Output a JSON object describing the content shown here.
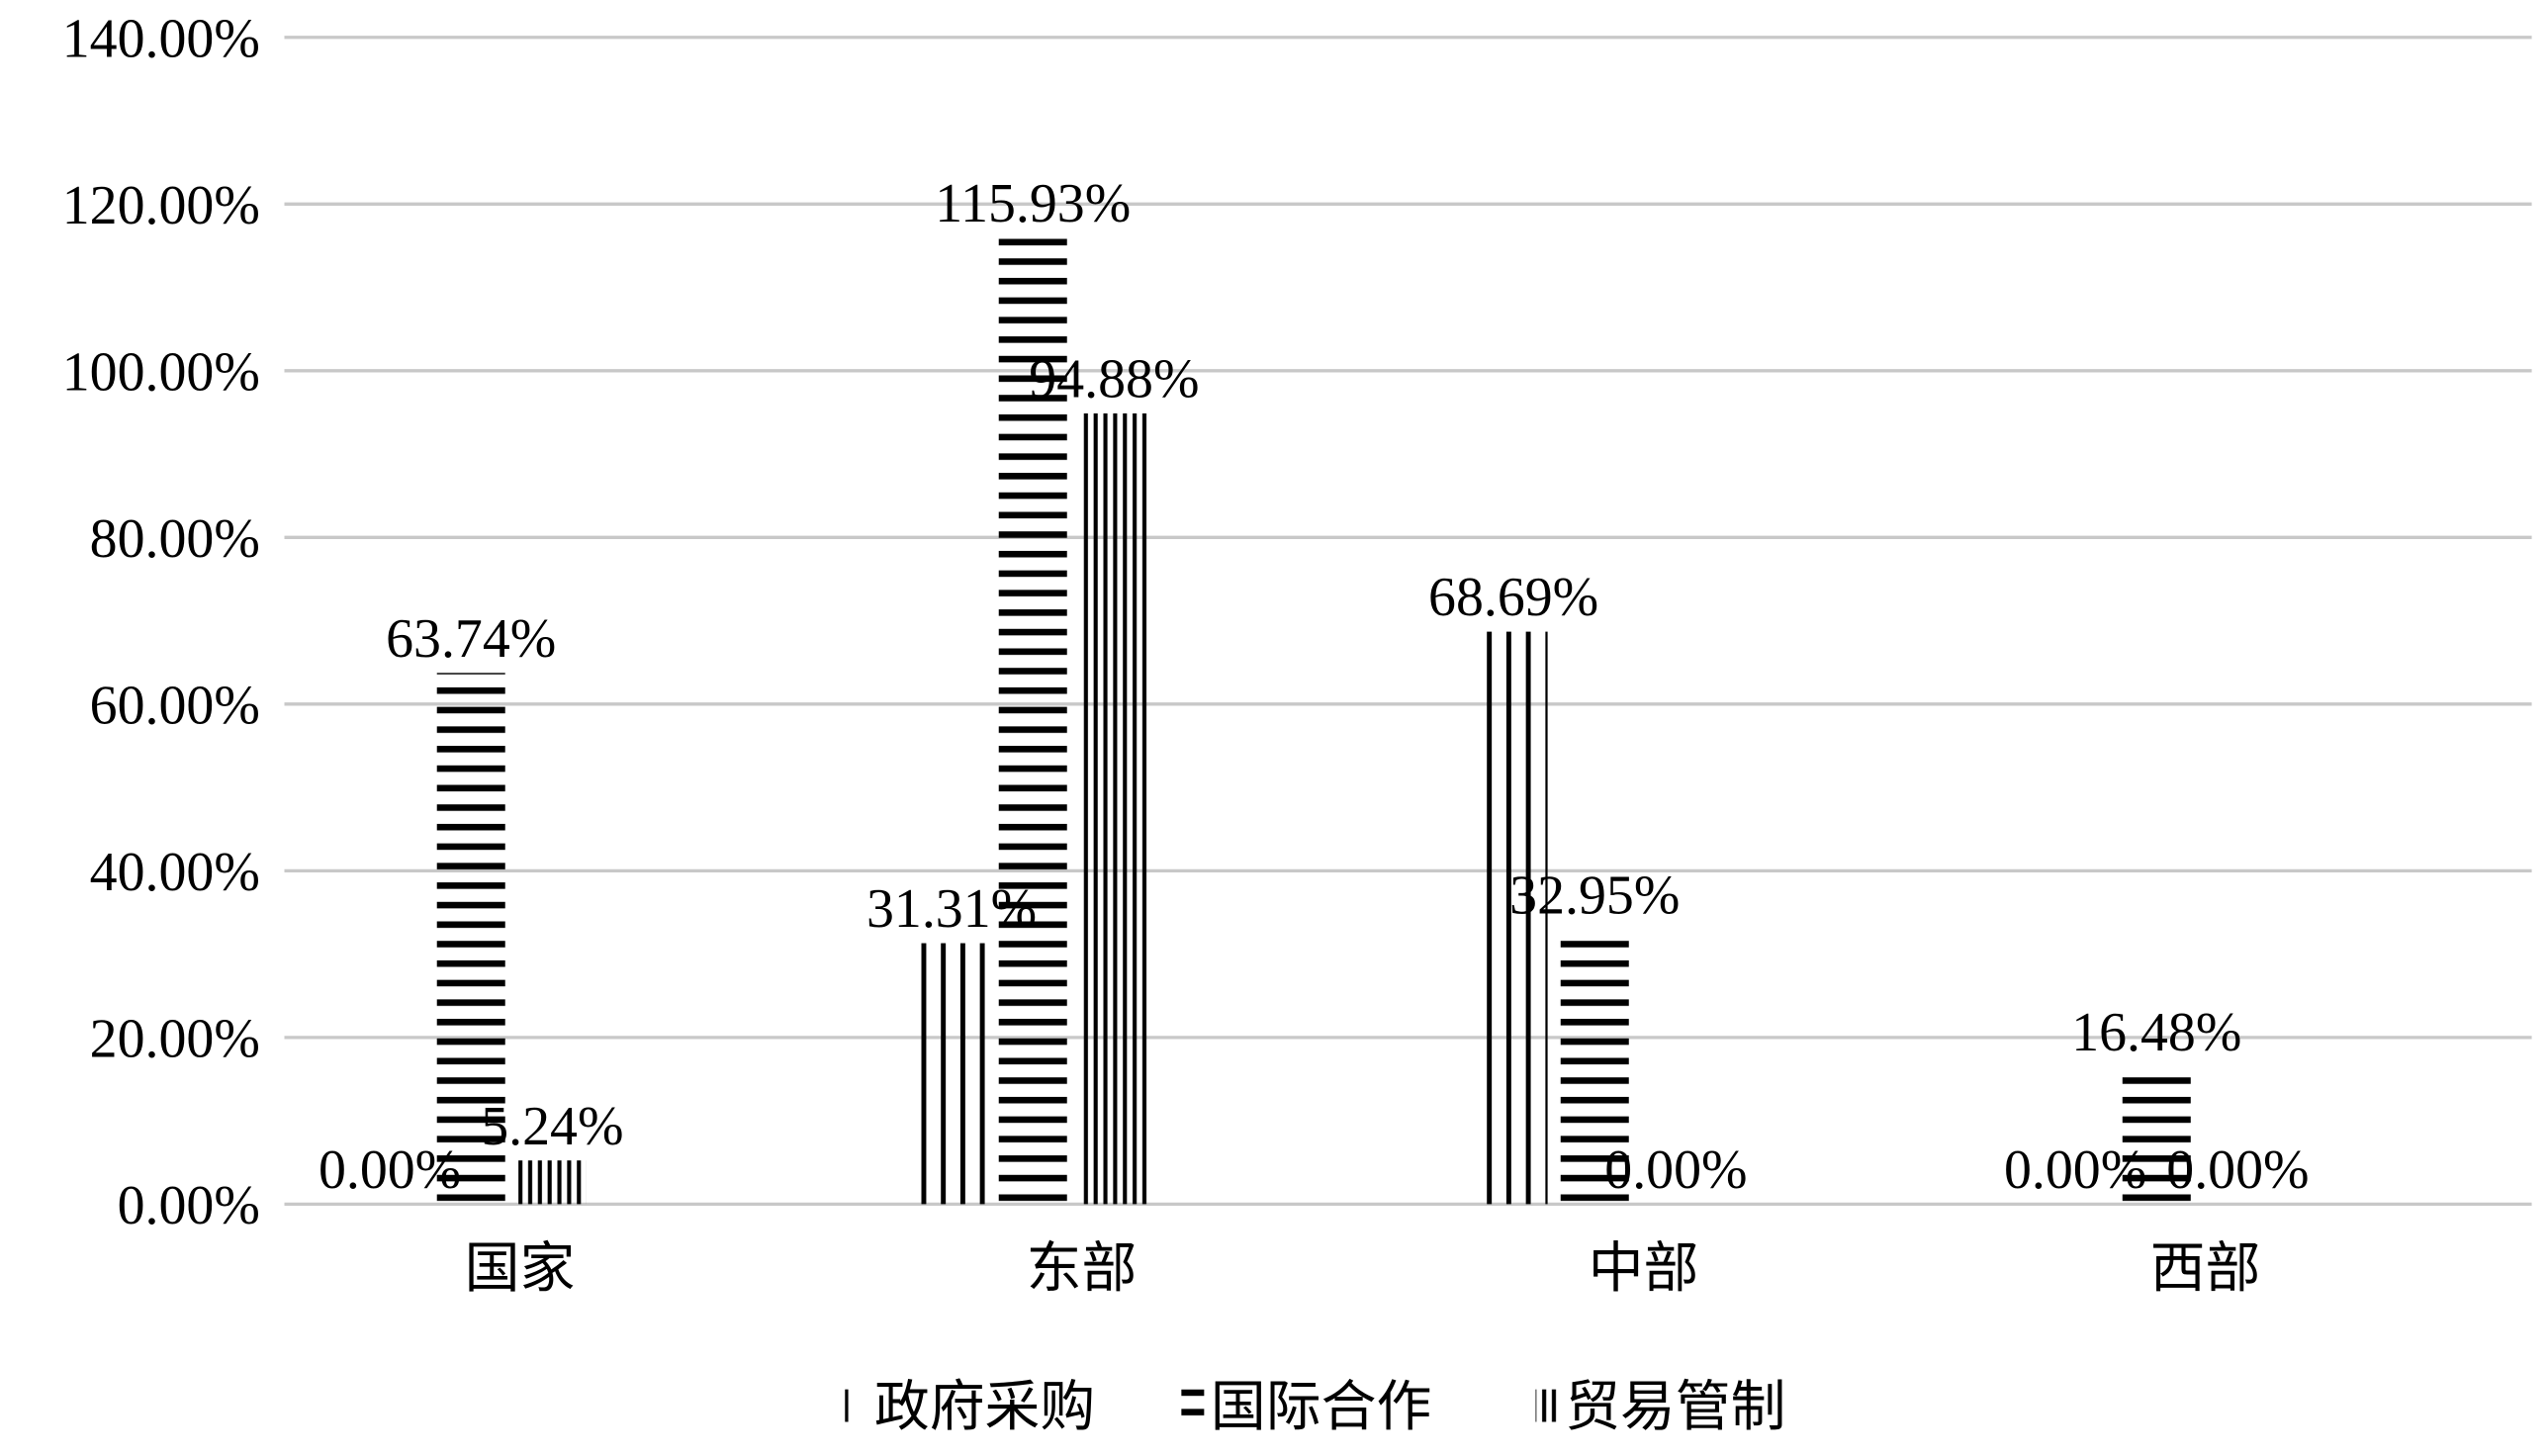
{
  "chart_data": {
    "type": "bar",
    "categories": [
      "国家",
      "东部",
      "中部",
      "西部"
    ],
    "series": [
      {
        "name": "政府采购",
        "color": "#000000",
        "values": [
          0,
          31.31,
          68.69,
          0
        ],
        "value_labels": [
          "0.00%",
          "31.31%",
          "68.69%",
          "0.00%"
        ]
      },
      {
        "name": "国际合作",
        "color": "#000000",
        "values": [
          63.74,
          115.93,
          32.95,
          16.48
        ],
        "value_labels": [
          "63.74%",
          "115.93%",
          "32.95%",
          "16.48%"
        ]
      },
      {
        "name": "贸易管制",
        "color": "#000000",
        "values": [
          5.24,
          94.88,
          0,
          0
        ],
        "value_labels": [
          "5.24%",
          "94.88%",
          "0.00%",
          "0.00%"
        ]
      }
    ],
    "ylim": [
      0,
      140
    ],
    "yticks": [
      {
        "value": 0,
        "label": "0.00%"
      },
      {
        "value": 20,
        "label": "20.00%"
      },
      {
        "value": 40,
        "label": "40.00%"
      },
      {
        "value": 60,
        "label": "60.00%"
      },
      {
        "value": 80,
        "label": "80.00%"
      },
      {
        "value": 100,
        "label": "100.00%"
      },
      {
        "value": 120,
        "label": "120.00%"
      },
      {
        "value": 140,
        "label": "140.00%"
      }
    ],
    "grid": true,
    "legend": "bottom"
  }
}
